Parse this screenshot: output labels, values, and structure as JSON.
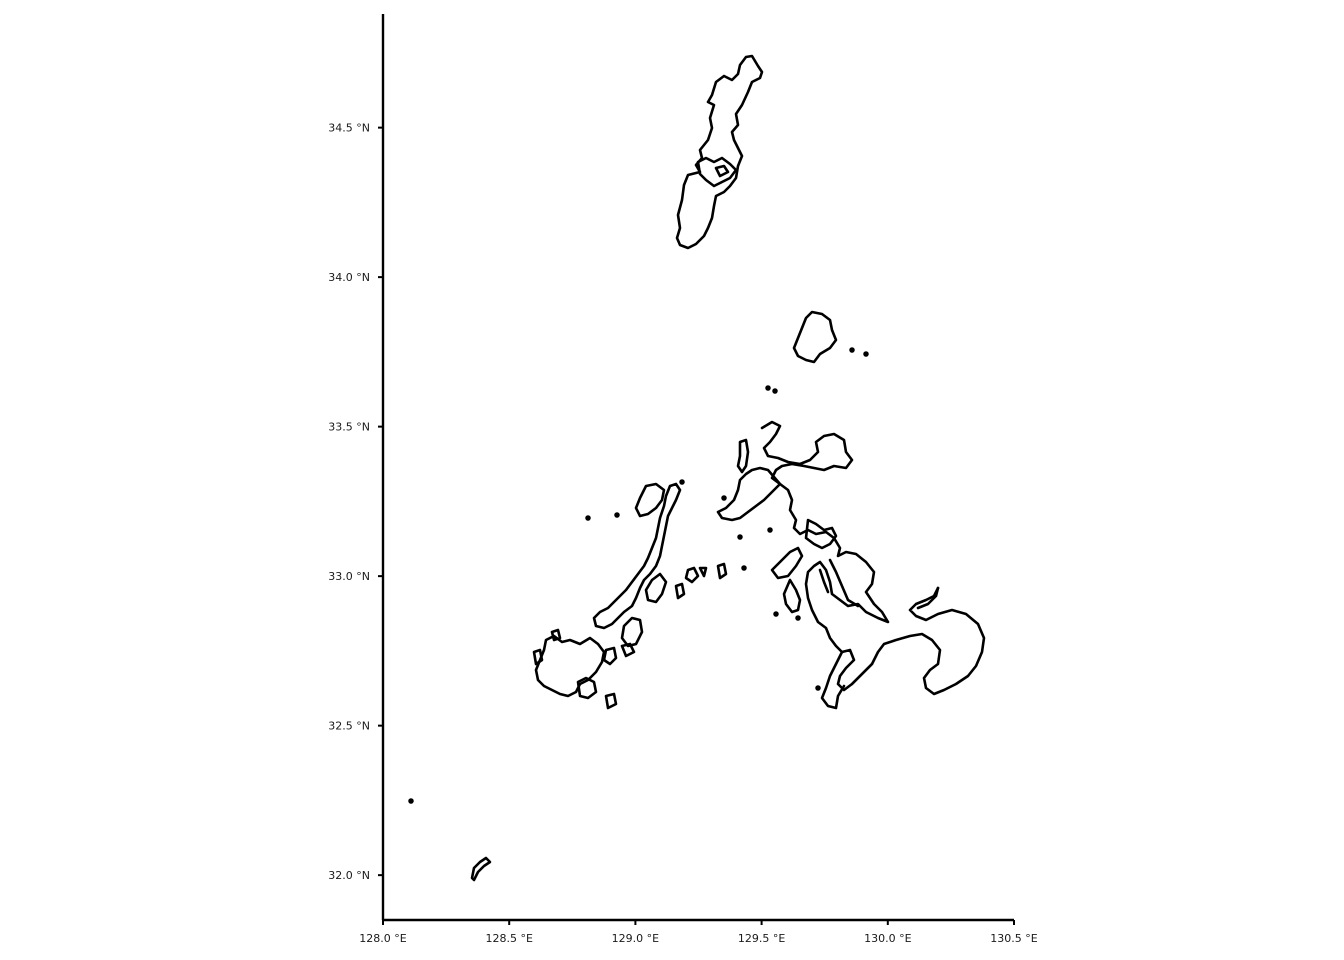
{
  "chart_data": {
    "type": "map",
    "region": "Nagasaki Prefecture coastline",
    "xlim": [
      128.0,
      130.5
    ],
    "ylim": [
      31.85,
      34.88
    ],
    "x_ticks": [
      "128.0 °E",
      "128.5 °E",
      "129.0 °E",
      "129.5 °E",
      "130.0 °E",
      "130.5 °E"
    ],
    "y_ticks": [
      "32.0 °N",
      "32.5 °N",
      "33.0 °N",
      "33.5 °N",
      "34.0 °N",
      "34.5 °N"
    ],
    "x_tick_values": [
      128.0,
      128.5,
      129.0,
      129.5,
      130.0,
      130.5
    ],
    "y_tick_values": [
      32.0,
      32.5,
      33.0,
      33.5,
      34.0,
      34.5
    ],
    "outline_color": "#000000",
    "background": "#ffffff",
    "grid": false
  }
}
